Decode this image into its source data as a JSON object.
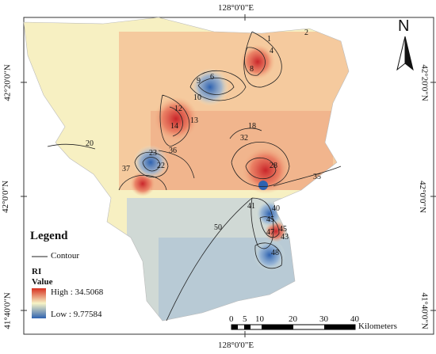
{
  "coordinates": {
    "top": "128°0'0\"E",
    "bottom": "128°0'0\"E",
    "left": [
      "42°20'0\"N",
      "42°0'0\"N",
      "41°40'0\"N"
    ],
    "right": [
      "42°20'0\"N",
      "42°0'0\"N",
      "41°40'0\"N"
    ]
  },
  "legend": {
    "title": "Legend",
    "contour_label": "Contour",
    "layer_name": "RI",
    "value_label": "Value",
    "high_label": "High : 34.5068",
    "low_label": "Low : 9.77584",
    "high_color": "#d7301f",
    "mid_color": "#f7f4c6",
    "low_color": "#2e62b0"
  },
  "north_arrow": {
    "label": "N"
  },
  "scale_bar": {
    "ticks": [
      "0",
      "5",
      "10",
      "20",
      "30",
      "40"
    ],
    "unit": "Kilometers"
  },
  "contour_labels": [
    "1",
    "2",
    "4",
    "8",
    "6",
    "9",
    "10",
    "12",
    "13",
    "14",
    "18",
    "20",
    "22",
    "32",
    "36",
    "37",
    "23",
    "28",
    "35",
    "41",
    "50",
    "45",
    "47",
    "48",
    "40",
    "45",
    "43"
  ]
}
